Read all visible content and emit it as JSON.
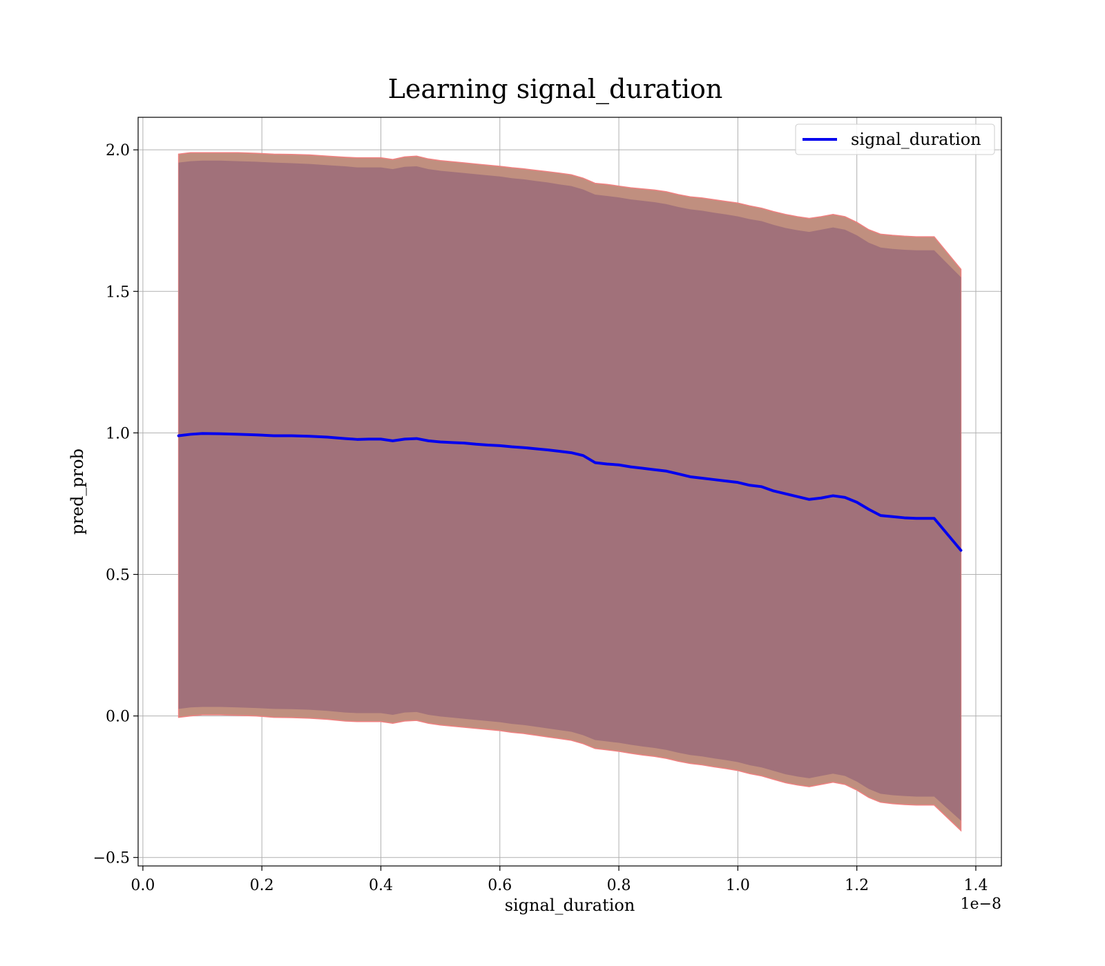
{
  "chart_data": {
    "type": "line",
    "title": "Learning signal_duration",
    "xlabel": "signal_duration",
    "ylabel": "pred_prob",
    "x_offset_label": "1e−8",
    "xlim": [
      -0.008,
      1.443
    ],
    "ylim": [
      -0.53,
      2.115
    ],
    "x_ticks": [
      0.0,
      0.2,
      0.4,
      0.6,
      0.8,
      1.0,
      1.2,
      1.4
    ],
    "x_tick_labels": [
      "0.0",
      "0.2",
      "0.4",
      "0.6",
      "0.8",
      "1.0",
      "1.2",
      "1.4"
    ],
    "y_ticks": [
      -0.5,
      0.0,
      0.5,
      1.0,
      1.5,
      2.0
    ],
    "y_tick_labels": [
      "−0.5",
      "0.0",
      "0.5",
      "1.0",
      "1.5",
      "2.0"
    ],
    "grid": true,
    "legend": {
      "position": "top-right",
      "entries": [
        "signal_duration"
      ]
    },
    "colors": {
      "line": "#0000ee",
      "band_outer": "#c08f7f",
      "band_inner": "#a1717a",
      "band_edge": "#f08080",
      "grid": "#b0b0b0"
    },
    "series": [
      {
        "name": "signal_duration",
        "x": [
          0.06,
          0.08,
          0.1,
          0.13,
          0.16,
          0.19,
          0.22,
          0.25,
          0.28,
          0.31,
          0.34,
          0.36,
          0.38,
          0.4,
          0.42,
          0.44,
          0.46,
          0.48,
          0.5,
          0.52,
          0.54,
          0.56,
          0.58,
          0.6,
          0.62,
          0.64,
          0.66,
          0.68,
          0.7,
          0.72,
          0.74,
          0.76,
          0.78,
          0.8,
          0.82,
          0.84,
          0.86,
          0.88,
          0.9,
          0.92,
          0.94,
          0.96,
          0.98,
          1.0,
          1.02,
          1.04,
          1.06,
          1.08,
          1.1,
          1.12,
          1.14,
          1.16,
          1.18,
          1.2,
          1.22,
          1.24,
          1.26,
          1.28,
          1.3,
          1.33,
          1.375
        ],
        "y": [
          0.99,
          0.995,
          0.998,
          0.997,
          0.995,
          0.993,
          0.99,
          0.99,
          0.988,
          0.985,
          0.98,
          0.977,
          0.978,
          0.978,
          0.972,
          0.978,
          0.98,
          0.972,
          0.968,
          0.966,
          0.964,
          0.96,
          0.957,
          0.955,
          0.951,
          0.948,
          0.944,
          0.94,
          0.935,
          0.93,
          0.92,
          0.895,
          0.89,
          0.887,
          0.88,
          0.875,
          0.87,
          0.865,
          0.855,
          0.845,
          0.84,
          0.835,
          0.83,
          0.825,
          0.815,
          0.81,
          0.795,
          0.785,
          0.775,
          0.765,
          0.77,
          0.778,
          0.772,
          0.755,
          0.73,
          0.708,
          0.704,
          0.7,
          0.698,
          0.698,
          0.585
        ],
        "band_outer_upper": [
          1.985,
          1.99,
          1.99,
          1.99,
          1.99,
          1.988,
          1.985,
          1.984,
          1.982,
          1.978,
          1.974,
          1.972,
          1.972,
          1.972,
          1.966,
          1.975,
          1.978,
          1.968,
          1.962,
          1.958,
          1.954,
          1.95,
          1.946,
          1.942,
          1.937,
          1.933,
          1.928,
          1.923,
          1.918,
          1.912,
          1.9,
          1.882,
          1.878,
          1.872,
          1.866,
          1.862,
          1.858,
          1.852,
          1.842,
          1.834,
          1.83,
          1.824,
          1.818,
          1.812,
          1.802,
          1.794,
          1.782,
          1.772,
          1.764,
          1.758,
          1.764,
          1.772,
          1.764,
          1.744,
          1.718,
          1.702,
          1.698,
          1.695,
          1.693,
          1.693,
          1.578
        ],
        "band_inner_upper": [
          1.955,
          1.96,
          1.962,
          1.962,
          1.96,
          1.958,
          1.955,
          1.953,
          1.95,
          1.946,
          1.942,
          1.938,
          1.938,
          1.938,
          1.932,
          1.94,
          1.942,
          1.932,
          1.926,
          1.922,
          1.918,
          1.914,
          1.91,
          1.906,
          1.9,
          1.896,
          1.89,
          1.885,
          1.878,
          1.872,
          1.86,
          1.842,
          1.837,
          1.832,
          1.825,
          1.82,
          1.815,
          1.808,
          1.798,
          1.79,
          1.785,
          1.778,
          1.772,
          1.765,
          1.755,
          1.748,
          1.735,
          1.724,
          1.716,
          1.71,
          1.718,
          1.726,
          1.718,
          1.698,
          1.672,
          1.655,
          1.65,
          1.647,
          1.645,
          1.645,
          1.55
        ],
        "band_inner_lower": [
          0.025,
          0.03,
          0.032,
          0.032,
          0.03,
          0.028,
          0.025,
          0.024,
          0.022,
          0.018,
          0.012,
          0.01,
          0.01,
          0.01,
          0.004,
          0.012,
          0.014,
          0.004,
          -0.002,
          -0.006,
          -0.01,
          -0.014,
          -0.018,
          -0.022,
          -0.028,
          -0.032,
          -0.038,
          -0.044,
          -0.05,
          -0.056,
          -0.068,
          -0.085,
          -0.09,
          -0.095,
          -0.102,
          -0.108,
          -0.113,
          -0.12,
          -0.13,
          -0.138,
          -0.143,
          -0.15,
          -0.156,
          -0.163,
          -0.174,
          -0.182,
          -0.194,
          -0.206,
          -0.214,
          -0.22,
          -0.212,
          -0.204,
          -0.212,
          -0.232,
          -0.258,
          -0.275,
          -0.28,
          -0.283,
          -0.285,
          -0.285,
          -0.37
        ],
        "band_outer_lower": [
          -0.005,
          0.0,
          0.004,
          0.004,
          0.002,
          0.0,
          -0.005,
          -0.006,
          -0.008,
          -0.012,
          -0.018,
          -0.02,
          -0.02,
          -0.02,
          -0.026,
          -0.018,
          -0.016,
          -0.026,
          -0.032,
          -0.036,
          -0.04,
          -0.044,
          -0.048,
          -0.052,
          -0.058,
          -0.062,
          -0.068,
          -0.074,
          -0.08,
          -0.086,
          -0.098,
          -0.115,
          -0.12,
          -0.125,
          -0.132,
          -0.138,
          -0.143,
          -0.15,
          -0.16,
          -0.168,
          -0.173,
          -0.18,
          -0.186,
          -0.193,
          -0.204,
          -0.212,
          -0.224,
          -0.236,
          -0.244,
          -0.25,
          -0.242,
          -0.234,
          -0.242,
          -0.262,
          -0.288,
          -0.305,
          -0.31,
          -0.313,
          -0.315,
          -0.315,
          -0.405
        ]
      }
    ]
  }
}
